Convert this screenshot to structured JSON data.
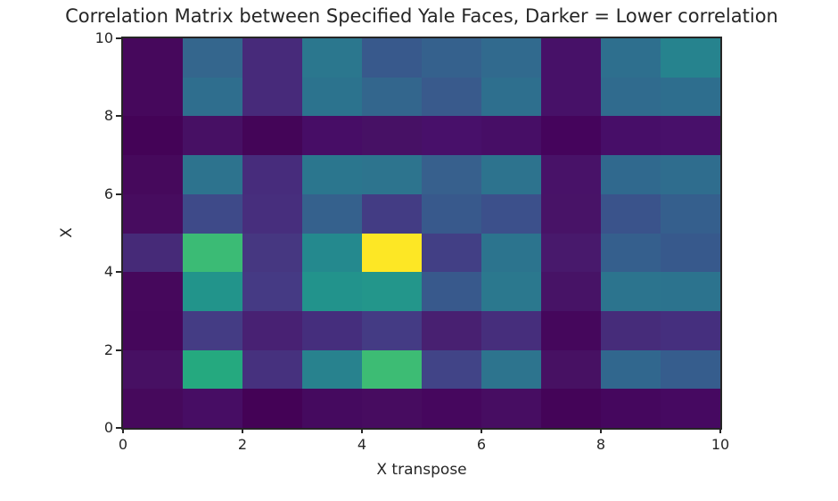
{
  "style": {
    "text-color": "#262626",
    "spine-color": "#262626",
    "bg-color": "#ffffff"
  },
  "chart_data": {
    "type": "heatmap",
    "title": "Correlation Matrix between Specified Yale Faces, Darker = Lower correlation",
    "xlabel": "X transpose",
    "ylabel": "X",
    "x_ticks": [
      "0",
      "2",
      "4",
      "6",
      "8",
      "10"
    ],
    "y_ticks": [
      "0",
      "2",
      "4",
      "6",
      "8",
      "10"
    ],
    "x_range": [
      0,
      10
    ],
    "y_range": [
      0,
      10
    ],
    "grid_size": [
      10,
      10
    ],
    "colormap": "viridis",
    "legend": "none",
    "note": "rows listed top-to-bottom corresponding to y=9..0; columns left-to-right x=0..9",
    "cell_colors_top_to_bottom": [
      [
        "#46085c",
        "#34668d",
        "#472a7a",
        "#2b778e",
        "#38598c",
        "#35618d",
        "#316a8e",
        "#471168",
        "#2e6f8e",
        "#26838e"
      ],
      [
        "#46085c",
        "#2f6e8e",
        "#472a7a",
        "#2c738e",
        "#33668d",
        "#395a8c",
        "#2e6f8e",
        "#471168",
        "#306b8e",
        "#2e6e8e"
      ],
      [
        "#440357",
        "#471064",
        "#440558",
        "#470d66",
        "#471165",
        "#48106a",
        "#470e66",
        "#45045c",
        "#470e68",
        "#48106a"
      ],
      [
        "#46095c",
        "#2d738e",
        "#472c7c",
        "#2b768e",
        "#2d748e",
        "#37608d",
        "#2d738e",
        "#481268",
        "#30698e",
        "#2f6d8e"
      ],
      [
        "#470c5f",
        "#3e4a89",
        "#472e7d",
        "#35618d",
        "#433c84",
        "#38598c",
        "#3c508b",
        "#481367",
        "#3a538b",
        "#355f8d"
      ],
      [
        "#462a78",
        "#3bbb75",
        "#463781",
        "#24898e",
        "#fde725",
        "#423f85",
        "#2c748e",
        "#48196c",
        "#355f8d",
        "#37598c"
      ],
      [
        "#46085c",
        "#22948b",
        "#453a84",
        "#22938c",
        "#23968b",
        "#38598c",
        "#2b788e",
        "#471366",
        "#2c748e",
        "#2c738e"
      ],
      [
        "#45075b",
        "#443c84",
        "#482173",
        "#452e7d",
        "#443b84",
        "#482071",
        "#462e7c",
        "#45075c",
        "#462c7a",
        "#452f7e"
      ],
      [
        "#471063",
        "#25a97f",
        "#46317e",
        "#28828e",
        "#3dbc74",
        "#414487",
        "#2d748e",
        "#471163",
        "#31678e",
        "#365d8d"
      ],
      [
        "#46095c",
        "#470d64",
        "#440256",
        "#450a5f",
        "#470c60",
        "#46075e",
        "#470d62",
        "#440458",
        "#45075e",
        "#460961"
      ]
    ],
    "cell_values_top_to_bottom": [
      [
        0.04,
        0.31,
        0.15,
        0.37,
        0.28,
        0.3,
        0.33,
        0.08,
        0.34,
        0.43
      ],
      [
        0.04,
        0.34,
        0.15,
        0.36,
        0.31,
        0.27,
        0.34,
        0.08,
        0.33,
        0.34
      ],
      [
        0.01,
        0.06,
        0.02,
        0.05,
        0.06,
        0.08,
        0.06,
        0.02,
        0.06,
        0.08
      ],
      [
        0.04,
        0.36,
        0.16,
        0.37,
        0.36,
        0.3,
        0.36,
        0.09,
        0.33,
        0.34
      ],
      [
        0.05,
        0.24,
        0.16,
        0.3,
        0.2,
        0.28,
        0.26,
        0.09,
        0.27,
        0.3
      ],
      [
        0.15,
        0.67,
        0.19,
        0.46,
        1.0,
        0.21,
        0.36,
        0.11,
        0.3,
        0.28
      ],
      [
        0.04,
        0.52,
        0.2,
        0.52,
        0.52,
        0.28,
        0.38,
        0.1,
        0.36,
        0.36
      ],
      [
        0.03,
        0.2,
        0.12,
        0.16,
        0.2,
        0.12,
        0.16,
        0.03,
        0.15,
        0.16
      ],
      [
        0.06,
        0.61,
        0.17,
        0.42,
        0.68,
        0.22,
        0.36,
        0.06,
        0.32,
        0.29
      ],
      [
        0.04,
        0.06,
        0.01,
        0.04,
        0.05,
        0.04,
        0.05,
        0.02,
        0.04,
        0.05
      ]
    ]
  }
}
